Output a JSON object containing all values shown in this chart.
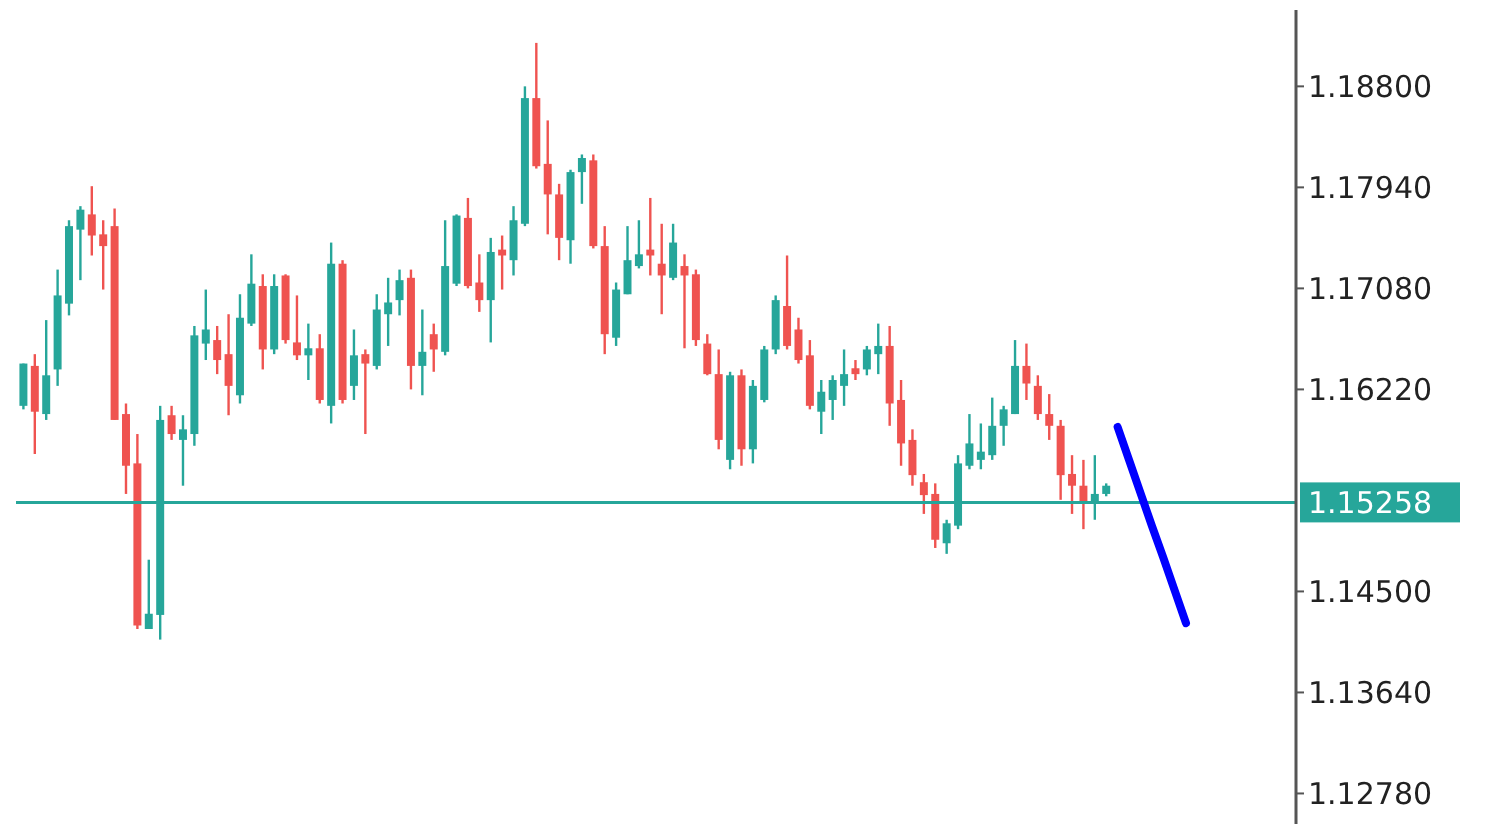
{
  "chart_data": {
    "type": "candlestick",
    "categories": [
      null,
      null,
      null,
      null,
      null,
      null,
      null,
      null,
      null,
      null,
      null,
      null,
      null,
      null,
      null,
      null,
      null,
      null,
      null,
      null,
      null,
      null,
      null,
      null,
      null,
      null,
      null,
      null,
      null,
      null,
      null,
      null,
      null,
      null,
      null,
      null,
      null,
      null,
      null,
      null,
      null,
      null,
      null,
      null,
      null,
      null,
      null,
      null,
      null,
      null,
      null,
      null,
      null,
      null,
      null,
      null,
      null,
      null,
      null,
      null,
      null,
      null,
      null,
      null,
      null,
      null,
      null,
      null,
      null,
      null,
      null,
      null,
      null,
      null,
      null,
      null,
      null,
      null,
      null,
      null,
      null,
      null,
      null,
      null,
      null,
      null,
      null,
      null,
      null,
      null,
      null,
      null,
      null,
      null,
      null,
      null,
      null,
      null,
      null,
      null,
      null,
      null,
      null,
      null,
      null,
      null,
      null,
      null,
      null,
      null,
      null,
      null
    ],
    "ohlc": [
      [
        1.1608,
        1.1644,
        1.1605,
        1.1644
      ],
      [
        1.1642,
        1.1652,
        1.1567,
        1.1603
      ],
      [
        1.1601,
        1.1681,
        1.1596,
        1.1634
      ],
      [
        1.1639,
        1.1724,
        1.1625,
        1.1702
      ],
      [
        1.1695,
        1.1766,
        1.1685,
        1.1761
      ],
      [
        1.1758,
        1.1778,
        1.1715,
        1.1775
      ],
      [
        1.1771,
        1.1795,
        1.1736,
        1.1753
      ],
      [
        1.1754,
        1.1766,
        1.1707,
        1.1744
      ],
      [
        1.1761,
        1.1776,
        1.1596,
        1.1596
      ],
      [
        1.1601,
        1.161,
        1.1533,
        1.1557
      ],
      [
        1.1559,
        1.1584,
        1.1418,
        1.1421
      ],
      [
        1.1418,
        1.1477,
        1.1418,
        1.1431
      ],
      [
        1.143,
        1.1608,
        1.1409,
        1.1596
      ],
      [
        1.16,
        1.1608,
        1.1579,
        1.1584
      ],
      [
        1.1579,
        1.16,
        1.154,
        1.1588
      ],
      [
        1.1584,
        1.1676,
        1.1574,
        1.1668
      ],
      [
        1.1661,
        1.1707,
        1.1647,
        1.1673
      ],
      [
        1.1664,
        1.1676,
        1.1635,
        1.1647
      ],
      [
        1.1652,
        1.1686,
        1.16,
        1.1625
      ],
      [
        1.1617,
        1.1703,
        1.161,
        1.1683
      ],
      [
        1.1678,
        1.1737,
        1.1676,
        1.1712
      ],
      [
        1.171,
        1.172,
        1.1639,
        1.1656
      ],
      [
        1.1656,
        1.172,
        1.1652,
        1.171
      ],
      [
        1.1719,
        1.172,
        1.1661,
        1.1664
      ],
      [
        1.1662,
        1.1702,
        1.1647,
        1.1651
      ],
      [
        1.1651,
        1.1678,
        1.163,
        1.1657
      ],
      [
        1.1657,
        1.1669,
        1.161,
        1.1613
      ],
      [
        1.1608,
        1.1747,
        1.1593,
        1.1729
      ],
      [
        1.1729,
        1.1732,
        1.161,
        1.1613
      ],
      [
        1.1625,
        1.1673,
        1.1613,
        1.1651
      ],
      [
        1.1652,
        1.1656,
        1.1584,
        1.1644
      ],
      [
        1.1642,
        1.1703,
        1.1639,
        1.169
      ],
      [
        1.1686,
        1.1717,
        1.1659,
        1.1696
      ],
      [
        1.1698,
        1.1724,
        1.1685,
        1.1715
      ],
      [
        1.1717,
        1.1724,
        1.1622,
        1.1642
      ],
      [
        1.1642,
        1.169,
        1.1617,
        1.1654
      ],
      [
        1.1669,
        1.1678,
        1.1637,
        1.1656
      ],
      [
        1.1654,
        1.1766,
        1.1651,
        1.1727
      ],
      [
        1.1712,
        1.1771,
        1.171,
        1.177
      ],
      [
        1.1768,
        1.1785,
        1.1708,
        1.171
      ],
      [
        1.1713,
        1.1737,
        1.1688,
        1.1698
      ],
      [
        1.1698,
        1.1751,
        1.1662,
        1.1739
      ],
      [
        1.1741,
        1.1753,
        1.1707,
        1.1736
      ],
      [
        1.1732,
        1.1778,
        1.1719,
        1.1766
      ],
      [
        1.1763,
        1.188,
        1.1761,
        1.187
      ],
      [
        1.187,
        1.1917,
        1.181,
        1.1812
      ],
      [
        1.1814,
        1.1851,
        1.1754,
        1.1788
      ],
      [
        1.1788,
        1.1797,
        1.1732,
        1.1751
      ],
      [
        1.1749,
        1.1809,
        1.1729,
        1.1807
      ],
      [
        1.1807,
        1.1822,
        1.178,
        1.1819
      ],
      [
        1.1817,
        1.1822,
        1.1742,
        1.1744
      ],
      [
        1.1744,
        1.1761,
        1.1652,
        1.1669
      ],
      [
        1.1666,
        1.1713,
        1.1659,
        1.1707
      ],
      [
        1.1703,
        1.1761,
        1.1703,
        1.1732
      ],
      [
        1.1727,
        1.1766,
        1.1725,
        1.1737
      ],
      [
        1.1741,
        1.1785,
        1.1719,
        1.1736
      ],
      [
        1.1729,
        1.1763,
        1.1686,
        1.1719
      ],
      [
        1.1717,
        1.1763,
        1.1715,
        1.1747
      ],
      [
        1.1727,
        1.1737,
        1.1657,
        1.1719
      ],
      [
        1.172,
        1.1724,
        1.1659,
        1.1664
      ],
      [
        1.1661,
        1.1669,
        1.1634,
        1.1635
      ],
      [
        1.1635,
        1.1656,
        1.1571,
        1.1579
      ],
      [
        1.1562,
        1.1637,
        1.1554,
        1.1634
      ],
      [
        1.1634,
        1.1639,
        1.1557,
        1.1571
      ],
      [
        1.1571,
        1.163,
        1.1559,
        1.1625
      ],
      [
        1.1613,
        1.1659,
        1.1611,
        1.1656
      ],
      [
        1.1656,
        1.1702,
        1.1652,
        1.1698
      ],
      [
        1.1693,
        1.1736,
        1.1656,
        1.1659
      ],
      [
        1.1673,
        1.1683,
        1.1644,
        1.1647
      ],
      [
        1.1651,
        1.1664,
        1.1605,
        1.1608
      ],
      [
        1.1603,
        1.163,
        1.1584,
        1.162
      ],
      [
        1.1613,
        1.1634,
        1.1596,
        1.163
      ],
      [
        1.1625,
        1.1656,
        1.1608,
        1.1635
      ],
      [
        1.164,
        1.1647,
        1.163,
        1.1635
      ],
      [
        1.1639,
        1.1659,
        1.1634,
        1.1656
      ],
      [
        1.1652,
        1.1678,
        1.1635,
        1.1659
      ],
      [
        1.1659,
        1.1676,
        1.1591,
        1.161
      ],
      [
        1.1613,
        1.163,
        1.1557,
        1.1576
      ],
      [
        1.1579,
        1.1588,
        1.154,
        1.1549
      ],
      [
        1.1543,
        1.155,
        1.1516,
        1.1532
      ],
      [
        1.1533,
        1.1542,
        1.1487,
        1.1494
      ],
      [
        1.1491,
        1.1511,
        1.1482,
        1.1508
      ],
      [
        1.1506,
        1.1566,
        1.1503,
        1.1559
      ],
      [
        1.1557,
        1.1601,
        1.1554,
        1.1576
      ],
      [
        1.1562,
        1.1593,
        1.1554,
        1.1569
      ],
      [
        1.1566,
        1.1615,
        1.1562,
        1.1591
      ],
      [
        1.1591,
        1.1608,
        1.1574,
        1.1605
      ],
      [
        1.1601,
        1.1664,
        1.1601,
        1.1642
      ],
      [
        1.1642,
        1.1661,
        1.1613,
        1.1627
      ],
      [
        1.1625,
        1.1634,
        1.1596,
        1.1601
      ],
      [
        1.1601,
        1.1618,
        1.1579,
        1.1591
      ],
      [
        1.1591,
        1.1596,
        1.1528,
        1.1549
      ],
      [
        1.155,
        1.1566,
        1.1516,
        1.154
      ],
      [
        1.154,
        1.1562,
        1.1503,
        1.1525
      ],
      [
        1.1525,
        1.1566,
        1.1511,
        1.1533
      ],
      [
        1.1533,
        1.1542,
        1.1531,
        1.154
      ],
      null,
      null,
      null,
      null,
      null,
      null,
      null,
      null,
      null,
      null,
      null,
      null,
      null,
      null,
      null,
      null
    ],
    "colors": [
      "#26a69a",
      "#ef5350",
      "#26a69a",
      "#26a69a",
      "#26a69a",
      "#26a69a",
      "#ef5350",
      "#ef5350",
      "#ef5350",
      "#ef5350",
      "#ef5350",
      "#26a69a",
      "#26a69a",
      "#ef5350",
      "#26a69a",
      "#26a69a",
      "#26a69a",
      "#ef5350",
      "#ef5350",
      "#26a69a",
      "#26a69a",
      "#ef5350",
      "#26a69a",
      "#ef5350",
      "#ef5350",
      "#26a69a",
      "#ef5350",
      "#26a69a",
      "#ef5350",
      "#26a69a",
      "#ef5350",
      "#26a69a",
      "#26a69a",
      "#26a69a",
      "#ef5350",
      "#26a69a",
      "#ef5350",
      "#26a69a",
      "#26a69a",
      "#ef5350",
      "#ef5350",
      "#26a69a",
      "#ef5350",
      "#26a69a",
      "#26a69a",
      "#ef5350",
      "#ef5350",
      "#ef5350",
      "#26a69a",
      "#26a69a",
      "#ef5350",
      "#ef5350",
      "#26a69a",
      "#26a69a",
      "#26a69a",
      "#ef5350",
      "#ef5350",
      "#26a69a",
      "#ef5350",
      "#ef5350",
      "#ef5350",
      "#ef5350",
      "#26a69a",
      "#ef5350",
      "#26a69a",
      "#26a69a",
      "#26a69a",
      "#ef5350",
      "#ef5350",
      "#ef5350",
      "#26a69a",
      "#26a69a",
      "#26a69a",
      "#ef5350",
      "#26a69a",
      "#26a69a",
      "#ef5350",
      "#ef5350",
      "#ef5350",
      "#ef5350",
      "#ef5350",
      "#26a69a",
      "#26a69a",
      "#26a69a",
      "#26a69a",
      "#26a69a",
      "#26a69a",
      "#26a69a",
      "#ef5350",
      "#ef5350",
      "#ef5350",
      "#ef5350",
      "#ef5350",
      "#ef5350",
      "#26a69a",
      "#26a69a",
      null,
      null,
      null,
      null,
      null,
      null,
      null,
      null,
      null,
      null,
      null,
      null,
      null,
      null,
      null,
      null
    ],
    "series": [
      {
        "type": "line",
        "color": "#0000ff",
        "values": [
          null,
          null,
          null,
          null,
          null,
          null,
          null,
          null,
          null,
          null,
          null,
          null,
          null,
          null,
          null,
          null,
          null,
          null,
          null,
          null,
          null,
          null,
          null,
          null,
          null,
          null,
          null,
          null,
          null,
          null,
          null,
          null,
          null,
          null,
          null,
          null,
          null,
          null,
          null,
          null,
          null,
          null,
          null,
          null,
          null,
          null,
          null,
          null,
          null,
          null,
          null,
          null,
          null,
          null,
          null,
          null,
          null,
          null,
          null,
          null,
          null,
          null,
          null,
          null,
          null,
          null,
          null,
          null,
          null,
          null,
          null,
          null,
          null,
          null,
          null,
          null,
          null,
          null,
          null,
          null,
          null,
          null,
          null,
          null,
          null,
          null,
          null,
          null,
          null,
          null,
          null,
          null,
          null,
          null,
          null,
          null,
          1.159,
          1.1562,
          1.1534,
          1.1506,
          1.1479,
          1.1451,
          1.1423,
          null,
          null,
          null,
          null,
          null,
          null,
          null,
          null,
          null
        ]
      }
    ],
    "ref_lines": [
      {
        "axis": "y",
        "value": 1.15258,
        "label": "1.15258",
        "color": "#26a69a"
      }
    ],
    "ylim": [
      1.1252,
      1.1945
    ],
    "yticks": [
      {
        "value": 1.188,
        "label": "1.18800"
      },
      {
        "value": 1.1794,
        "label": "1.17940"
      },
      {
        "value": 1.1708,
        "label": "1.17080"
      },
      {
        "value": 1.1622,
        "label": "1.16220"
      },
      {
        "value": 1.145,
        "label": "1.14500"
      },
      {
        "value": 1.1364,
        "label": "1.13640"
      },
      {
        "value": 1.1278,
        "label": "1.12780"
      }
    ],
    "tick_labels": "y",
    "grid": false
  }
}
